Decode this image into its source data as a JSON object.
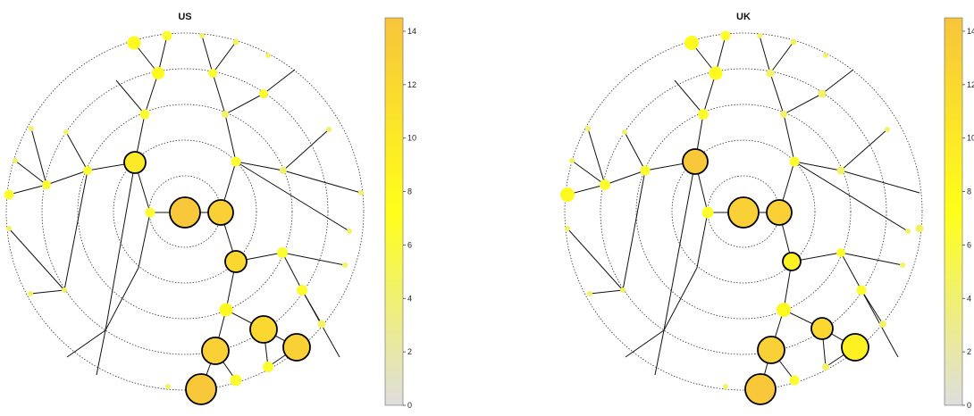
{
  "colors": {
    "scale_low": "#dedede",
    "scale_mid": "#ffff1a",
    "scale_high": "#f7c43c",
    "edge": "#111111",
    "ring": "#333333"
  },
  "colorbar_range": [
    0,
    14.5
  ],
  "colorbar_ticks": [
    "0",
    "2",
    "4",
    "6",
    "8",
    "10",
    "12",
    "14"
  ],
  "panels": [
    {
      "title": "US",
      "large_nodes": [
        {
          "value": 14,
          "size": "large"
        },
        {
          "value": 13,
          "size": "large"
        },
        {
          "value": 12,
          "size": "large"
        },
        {
          "value": 13,
          "size": "large"
        },
        {
          "value": 12,
          "size": "large"
        },
        {
          "value": 13,
          "size": "large"
        },
        {
          "value": 14,
          "size": "large"
        },
        {
          "value": 10,
          "size": "medium"
        }
      ]
    },
    {
      "title": "UK",
      "large_nodes": [
        {
          "value": 14,
          "size": "large"
        },
        {
          "value": 13,
          "size": "large"
        },
        {
          "value": 12,
          "size": "large"
        },
        {
          "value": 9,
          "size": "medium"
        },
        {
          "value": 9,
          "size": "medium"
        },
        {
          "value": 13,
          "size": "large"
        },
        {
          "value": 13,
          "size": "large"
        },
        {
          "value": 14,
          "size": "large"
        }
      ]
    }
  ]
}
